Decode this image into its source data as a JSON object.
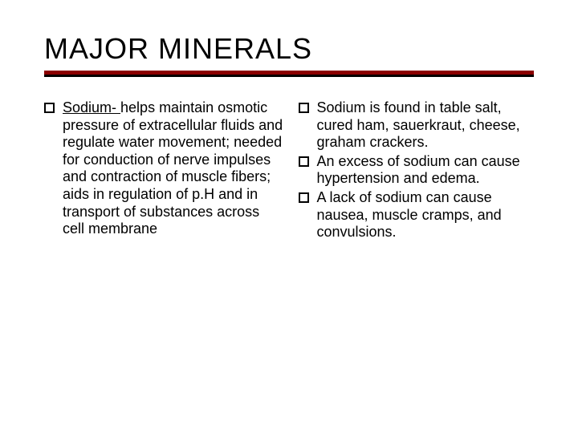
{
  "title": "MAJOR MINERALS",
  "rule": {
    "top_color": "#8b0000",
    "bottom_color": "#000000"
  },
  "text": {
    "fontsize": 18,
    "title_fontsize": 36,
    "color": "#000000",
    "font_family": "Verdana"
  },
  "left": {
    "items": [
      {
        "lead": "Sodium- ",
        "rest": "helps maintain osmotic pressure of extracellular fluids and regulate water movement; needed for conduction of nerve impulses and contraction of muscle fibers; aids in regulation of p.H and in transport of substances  across cell membrane"
      }
    ]
  },
  "right": {
    "items": [
      {
        "text": "Sodium is found in table salt, cured ham, sauerkraut, cheese, graham crackers."
      },
      {
        "text": "An excess of sodium can cause hypertension and edema."
      },
      {
        "text": "A lack of sodium can cause nausea, muscle cramps, and convulsions."
      }
    ]
  }
}
